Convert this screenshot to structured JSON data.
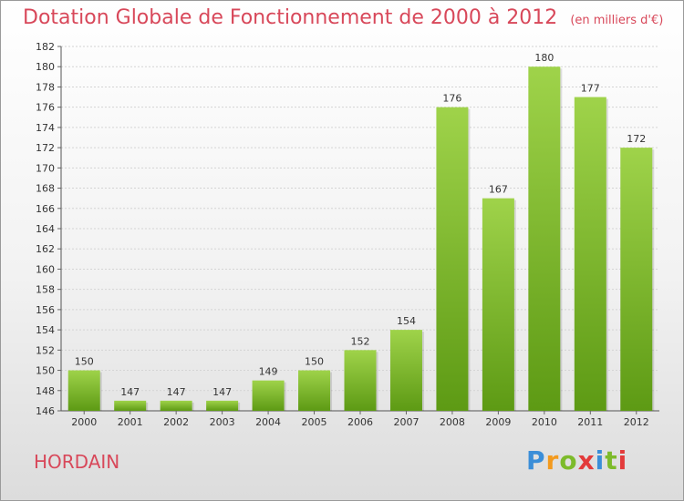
{
  "title": "Dotation Globale de Fonctionnement de 2000 à 2012",
  "unit_label": "(en milliers d'€)",
  "commune": "HORDAIN",
  "logo": {
    "text": "Proxiti",
    "letter_colors": [
      "#3b8ed8",
      "#f39a1e",
      "#7dbb2b",
      "#e33a3a",
      "#3b8ed8",
      "#7dbb2b",
      "#e33a3a"
    ]
  },
  "colors": {
    "bar_light": "#9fd34a",
    "bar_dark": "#5d9a14",
    "title": "#d8485a"
  },
  "chart_data": {
    "type": "bar",
    "categories": [
      "2000",
      "2001",
      "2002",
      "2003",
      "2004",
      "2005",
      "2006",
      "2007",
      "2008",
      "2009",
      "2010",
      "2011",
      "2012"
    ],
    "values": [
      150,
      147,
      147,
      147,
      149,
      150,
      152,
      154,
      176,
      167,
      180,
      177,
      172
    ],
    "ylim": [
      146,
      182
    ],
    "yticks": [
      146,
      148,
      150,
      152,
      154,
      156,
      158,
      160,
      162,
      164,
      166,
      168,
      170,
      172,
      174,
      176,
      178,
      180,
      182
    ],
    "grid": true,
    "legend": "none"
  }
}
